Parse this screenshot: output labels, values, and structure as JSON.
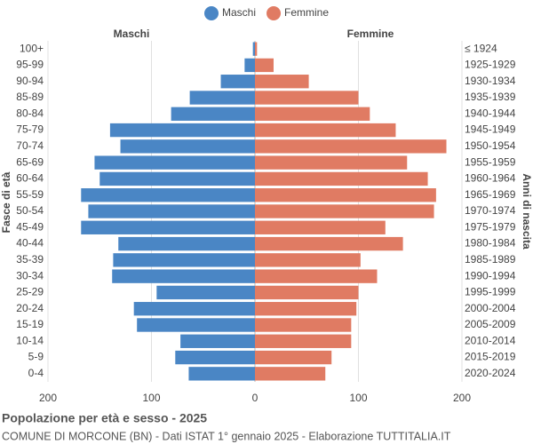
{
  "chart_data": {
    "type": "pyramid",
    "title": "Popolazione per età e sesso - 2025",
    "subtitle": "COMUNE DI MORCONE (BN) - Dati ISTAT 1° gennaio 2025 - Elaborazione TUTTITALIA.IT",
    "y_label": "Fasce di età",
    "y2_label": "Anni di nascita",
    "left_header": "Maschi",
    "right_header": "Femmine",
    "categories": [
      "100+",
      "95-99",
      "90-94",
      "85-89",
      "80-84",
      "75-79",
      "70-74",
      "65-69",
      "60-64",
      "55-59",
      "50-54",
      "45-49",
      "40-44",
      "35-39",
      "30-34",
      "25-29",
      "20-24",
      "15-19",
      "10-14",
      "5-9",
      "0-4"
    ],
    "birth_years": [
      "≤ 1924",
      "1925-1929",
      "1930-1934",
      "1935-1939",
      "1940-1944",
      "1945-1949",
      "1950-1954",
      "1955-1959",
      "1960-1964",
      "1965-1969",
      "1970-1974",
      "1975-1979",
      "1980-1984",
      "1985-1989",
      "1990-1994",
      "1995-1999",
      "2000-2004",
      "2005-2009",
      "2010-2014",
      "2015-2019",
      "2020-2024"
    ],
    "series": [
      {
        "name": "Maschi",
        "color": "#4a86c5",
        "side": "left",
        "values": [
          2,
          10,
          33,
          63,
          81,
          140,
          130,
          155,
          150,
          168,
          161,
          168,
          132,
          137,
          138,
          95,
          117,
          114,
          72,
          77,
          64
        ]
      },
      {
        "name": "Femmine",
        "color": "#e07b63",
        "side": "right",
        "values": [
          2,
          18,
          52,
          100,
          111,
          136,
          185,
          147,
          167,
          175,
          173,
          126,
          143,
          102,
          118,
          100,
          98,
          93,
          93,
          74,
          68
        ]
      }
    ],
    "xlim": [
      -200,
      200
    ],
    "xticks": [
      {
        "value": -200,
        "label": "200"
      },
      {
        "value": -100,
        "label": "100"
      },
      0,
      100,
      {
        "value": 200,
        "label": "200"
      }
    ],
    "grid": true
  }
}
